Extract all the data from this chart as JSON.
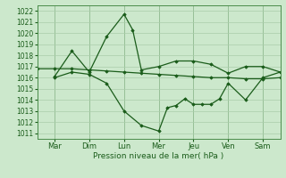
{
  "background_color": "#cce8cc",
  "grid_color": "#aaccaa",
  "line_color": "#1a5c1a",
  "xlabel": "Pression niveau de la mer( hPa )",
  "xlim": [
    0,
    28
  ],
  "ylim": [
    1010.5,
    1022.5
  ],
  "yticks": [
    1011,
    1012,
    1013,
    1014,
    1015,
    1016,
    1017,
    1018,
    1019,
    1020,
    1021,
    1022
  ],
  "xtick_labels": [
    "Mar",
    "Dim",
    "Lun",
    "Mer",
    "Jeu",
    "Ven",
    "Sam"
  ],
  "xtick_positions": [
    2,
    6,
    10,
    14,
    18,
    22,
    26
  ],
  "series_flat_x": [
    0,
    2,
    4,
    6,
    8,
    10,
    12,
    14,
    16,
    18,
    20,
    22,
    24,
    26,
    28
  ],
  "series_flat_y": [
    1016.8,
    1016.8,
    1016.8,
    1016.7,
    1016.6,
    1016.5,
    1016.4,
    1016.3,
    1016.2,
    1016.1,
    1016.0,
    1016.0,
    1015.9,
    1015.9,
    1016.0
  ],
  "series_upper_x": [
    2,
    4,
    6,
    8,
    10,
    11,
    12,
    14,
    16,
    18,
    20,
    22,
    24,
    26,
    28
  ],
  "series_upper_y": [
    1016.1,
    1018.4,
    1016.5,
    1019.7,
    1021.7,
    1020.3,
    1016.7,
    1017.0,
    1017.5,
    1017.5,
    1017.2,
    1016.4,
    1017.0,
    1017.0,
    1016.5
  ],
  "series_lower_x": [
    2,
    4,
    6,
    8,
    10,
    12,
    14,
    15,
    16,
    17,
    18,
    19,
    20,
    21,
    22,
    24,
    26,
    28
  ],
  "series_lower_y": [
    1016.0,
    1016.5,
    1016.3,
    1015.5,
    1013.0,
    1011.7,
    1011.2,
    1013.3,
    1013.5,
    1014.1,
    1013.6,
    1013.6,
    1013.6,
    1014.1,
    1015.5,
    1014.0,
    1016.0,
    1016.5
  ]
}
